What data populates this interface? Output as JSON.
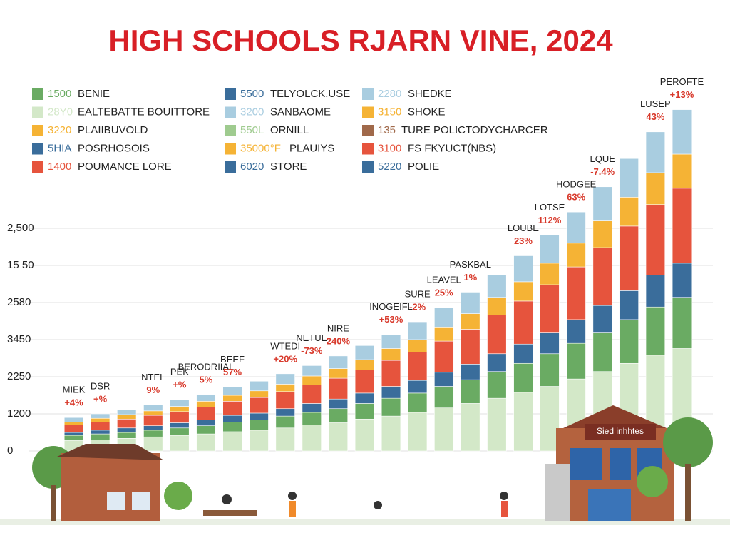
{
  "chart_data": {
    "type": "bar",
    "stacked": true,
    "title": "HIGH SCHOOLS RJARN VINE, 2024",
    "categories": [
      null,
      null,
      null,
      null,
      null,
      null,
      null,
      null,
      null,
      null,
      null,
      null,
      null,
      null,
      null,
      null,
      null,
      null,
      null,
      null,
      null,
      null,
      null,
      null
    ],
    "series": [
      {
        "color": "#d3e8c8",
        "values": [
          140,
          150,
          170,
          190,
          210,
          230,
          260,
          280,
          310,
          350,
          380,
          430,
          470,
          520,
          580,
          640,
          710,
          790,
          870,
          970,
          1070,
          1180,
          1290,
          1380
        ]
      },
      {
        "color": "#6aab63",
        "values": [
          70,
          80,
          80,
          90,
          100,
          110,
          130,
          140,
          160,
          170,
          190,
          210,
          240,
          260,
          290,
          320,
          360,
          390,
          440,
          480,
          530,
          590,
          650,
          690
        ]
      },
      {
        "color": "#3a6d9b",
        "values": [
          40,
          50,
          60,
          60,
          70,
          80,
          90,
          90,
          100,
          120,
          130,
          140,
          160,
          170,
          190,
          210,
          240,
          260,
          290,
          320,
          360,
          390,
          430,
          460
        ]
      },
      {
        "color": "#e6543d",
        "values": [
          100,
          110,
          120,
          140,
          150,
          170,
          190,
          210,
          230,
          250,
          280,
          310,
          350,
          380,
          420,
          470,
          520,
          580,
          640,
          710,
          780,
          870,
          950,
          1010
        ]
      },
      {
        "color": "#f5b335",
        "values": [
          40,
          50,
          60,
          60,
          70,
          80,
          80,
          90,
          100,
          120,
          130,
          140,
          160,
          170,
          190,
          210,
          240,
          260,
          290,
          320,
          360,
          390,
          430,
          460
        ]
      },
      {
        "color": "#a9cde0",
        "values": [
          60,
          60,
          70,
          80,
          90,
          90,
          110,
          130,
          140,
          140,
          170,
          190,
          190,
          240,
          260,
          290,
          300,
          350,
          380,
          420,
          460,
          520,
          550,
          600
        ]
      }
    ],
    "ylim": [
      0,
      5000
    ],
    "yticks": [
      0,
      {
        "value": 500,
        "label": "1200"
      },
      {
        "value": 1000,
        "label": "2250"
      },
      {
        "value": 1500,
        "label": "3450"
      },
      {
        "value": 2000,
        "label": "2580"
      },
      {
        "value": 2500,
        "label": "15 50"
      },
      {
        "value": 3000,
        "label": "2,500"
      }
    ],
    "grid": true,
    "legend": [
      {
        "code": "1500",
        "label": "BENIE",
        "color": "#6aab63"
      },
      {
        "code": "28Y0",
        "label": "EALTEBATTE BOUITTORE",
        "color": "#d3e8c8"
      },
      {
        "code": "3220",
        "label": "PLAIIBUVOLD",
        "color": "#f5b335"
      },
      {
        "code": "5HIA",
        "label": "POSRHOSOIS",
        "color": "#3a6d9b"
      },
      {
        "code": "1400",
        "label": "POUMANCE LORE",
        "color": "#e6543d"
      },
      {
        "code": "5500",
        "label": "TELYOLCK.USE",
        "color": "#3a6d9b"
      },
      {
        "code": "3200",
        "label": "SANBAOME",
        "color": "#a9cde0"
      },
      {
        "code": "550L",
        "label": "ORNILL",
        "color": "#9fcb8f"
      },
      {
        "code": "35000°F",
        "label": "PLAUIYS",
        "color": "#f5b335"
      },
      {
        "code": "6020",
        "label": "STORE",
        "color": "#3a6d9b"
      },
      {
        "code": "2280",
        "label": "SHEDKE",
        "color": "#a9cde0"
      },
      {
        "code": "3150",
        "label": "SHOKE",
        "color": "#f5b335"
      },
      {
        "code": "135",
        "label": "TURE POLICTODYCHARCER",
        "color": "#a0694a"
      },
      {
        "code": "3100",
        "label": "FS FKYUCT(NBS)",
        "color": "#e6543d"
      },
      {
        "code": "5220",
        "label": "POLIE",
        "color": "#3a6d9b"
      }
    ],
    "annotations": [
      {
        "label": "MIEK",
        "change": "+4%"
      },
      {
        "label": "DSR",
        "change": "+%"
      },
      {
        "label": "NTEL",
        "change": "9%"
      },
      {
        "label": "PEK",
        "change": "+%"
      },
      {
        "label": "BERODRIIAL",
        "change": "5%"
      },
      {
        "label": "BEEF",
        "change": "57%"
      },
      {
        "label": "WTEDI",
        "change": "+20%"
      },
      {
        "label": "NETUE",
        "change": "-73%"
      },
      {
        "label": "NIRE",
        "change": "240%"
      },
      {
        "label": "INOGEIFL",
        "change": "+53%"
      },
      {
        "label": "SURE",
        "change": "-2%"
      },
      {
        "label": "LEAVEL",
        "change": "25%"
      },
      {
        "label": "PASKBAL",
        "change": "1%"
      },
      {
        "label": "LOUBE",
        "change": "23%"
      },
      {
        "label": "LOTSE",
        "change": "112%"
      },
      {
        "label": "HODGEE",
        "change": "63%"
      },
      {
        "label": "LQUE",
        "change": "-7.4%"
      },
      {
        "label": "LUSEP",
        "change": "43%"
      },
      {
        "label": "PEROFTE",
        "change": "+13%"
      }
    ],
    "sign": "Sied inhhtes"
  }
}
